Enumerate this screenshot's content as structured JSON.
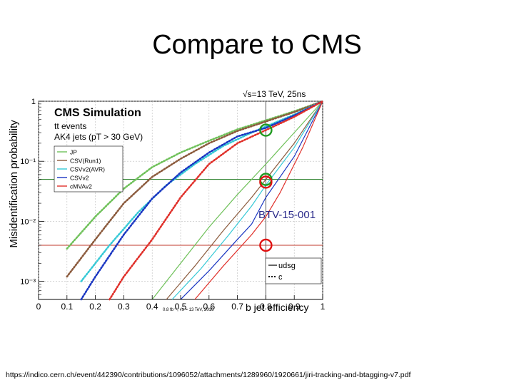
{
  "slide": {
    "title": "Compare to CMS",
    "footer_url": "https://indico.cern.ch/event/442390/contributions/1096052/attachments/1289960/1920661/jiri-tracking-and-btagging-v7.pdf"
  },
  "chart_data": {
    "type": "line",
    "title": "CMS Simulation",
    "subtitle_lines": [
      "tt events",
      "AK4 jets (pT > 30 GeV)"
    ],
    "energy_label": "√s=13 TeV, 25ns",
    "lumi_label": "0.8 fb⁻¹, √s = 13 TeV, 2016",
    "overlay_label": "BTV-15-001",
    "xlabel": "b jet efficiency",
    "ylabel": "Misidentification probability",
    "xlim": [
      0,
      1
    ],
    "ylim": [
      0.0005,
      1
    ],
    "yscale": "log",
    "x_ticks": [
      "0",
      "0.1",
      "0.2",
      "0.3",
      "0.4",
      "0.5",
      "0.6",
      "0.7",
      "0.8",
      "0.9",
      "1"
    ],
    "y_ticks": [
      {
        "value": 1,
        "label": "1"
      },
      {
        "value": 0.1,
        "label": "10⁻¹"
      },
      {
        "value": 0.01,
        "label": "10⁻²"
      },
      {
        "value": 0.001,
        "label": "10⁻³"
      }
    ],
    "grid": true,
    "legend_algorithms": [
      {
        "name": "JP",
        "color": "#6fc15a"
      },
      {
        "name": "CSV(Run1)",
        "color": "#8b5a3c"
      },
      {
        "name": "CSVv2(AVR)",
        "color": "#36c9d6"
      },
      {
        "name": "CSVv2",
        "color": "#1a36c2"
      },
      {
        "name": "cMVAv2",
        "color": "#e0302a"
      }
    ],
    "legend_flavours": [
      "udsg",
      "c"
    ],
    "series": [
      {
        "algorithm": "JP",
        "flavour": "udsg",
        "color": "#6fc15a",
        "points": [
          [
            0.4,
            0.0005
          ],
          [
            0.5,
            0.002
          ],
          [
            0.6,
            0.008
          ],
          [
            0.7,
            0.028
          ],
          [
            0.8,
            0.09
          ],
          [
            0.9,
            0.3
          ],
          [
            1.0,
            1.0
          ]
        ]
      },
      {
        "algorithm": "CSV(Run1)",
        "flavour": "udsg",
        "color": "#8b5a3c",
        "points": [
          [
            0.45,
            0.0005
          ],
          [
            0.55,
            0.0018
          ],
          [
            0.65,
            0.007
          ],
          [
            0.75,
            0.025
          ],
          [
            0.8,
            0.05
          ],
          [
            0.9,
            0.2
          ],
          [
            1.0,
            1.0
          ]
        ]
      },
      {
        "algorithm": "CSVv2(AVR)",
        "flavour": "udsg",
        "color": "#36c9d6",
        "points": [
          [
            0.47,
            0.0005
          ],
          [
            0.57,
            0.0016
          ],
          [
            0.67,
            0.006
          ],
          [
            0.75,
            0.018
          ],
          [
            0.8,
            0.04
          ],
          [
            0.9,
            0.17
          ],
          [
            1.0,
            1.0
          ]
        ]
      },
      {
        "algorithm": "CSVv2",
        "flavour": "udsg",
        "color": "#1a36c2",
        "points": [
          [
            0.5,
            0.0005
          ],
          [
            0.6,
            0.0015
          ],
          [
            0.7,
            0.005
          ],
          [
            0.75,
            0.009
          ],
          [
            0.8,
            0.025
          ],
          [
            0.9,
            0.12
          ],
          [
            1.0,
            1.0
          ]
        ]
      },
      {
        "algorithm": "cMVAv2",
        "flavour": "udsg",
        "color": "#e0302a",
        "points": [
          [
            0.55,
            0.0005
          ],
          [
            0.65,
            0.0018
          ],
          [
            0.75,
            0.006
          ],
          [
            0.8,
            0.012
          ],
          [
            0.85,
            0.03
          ],
          [
            0.93,
            0.17
          ],
          [
            1.0,
            1.0
          ]
        ]
      },
      {
        "algorithm": "JP",
        "flavour": "c",
        "color": "#6fc15a",
        "points": [
          [
            0.1,
            0.0035
          ],
          [
            0.2,
            0.012
          ],
          [
            0.3,
            0.035
          ],
          [
            0.4,
            0.08
          ],
          [
            0.5,
            0.14
          ],
          [
            0.6,
            0.22
          ],
          [
            0.7,
            0.34
          ],
          [
            0.8,
            0.48
          ],
          [
            0.9,
            0.68
          ],
          [
            1.0,
            1.0
          ]
        ]
      },
      {
        "algorithm": "CSV(Run1)",
        "flavour": "c",
        "color": "#8b5a3c",
        "points": [
          [
            0.1,
            0.0012
          ],
          [
            0.2,
            0.005
          ],
          [
            0.3,
            0.02
          ],
          [
            0.4,
            0.055
          ],
          [
            0.5,
            0.11
          ],
          [
            0.6,
            0.2
          ],
          [
            0.7,
            0.32
          ],
          [
            0.8,
            0.46
          ],
          [
            0.9,
            0.66
          ],
          [
            1.0,
            1.0
          ]
        ]
      },
      {
        "algorithm": "CSVv2(AVR)",
        "flavour": "c",
        "color": "#36c9d6",
        "points": [
          [
            0.15,
            0.001
          ],
          [
            0.25,
            0.004
          ],
          [
            0.35,
            0.014
          ],
          [
            0.45,
            0.04
          ],
          [
            0.55,
            0.09
          ],
          [
            0.65,
            0.18
          ],
          [
            0.75,
            0.3
          ],
          [
            0.8,
            0.38
          ],
          [
            0.9,
            0.6
          ],
          [
            1.0,
            1.0
          ]
        ]
      },
      {
        "algorithm": "CSVv2",
        "flavour": "c",
        "color": "#1a36c2",
        "points": [
          [
            0.15,
            0.0005
          ],
          [
            0.2,
            0.0012
          ],
          [
            0.3,
            0.006
          ],
          [
            0.4,
            0.024
          ],
          [
            0.5,
            0.065
          ],
          [
            0.6,
            0.14
          ],
          [
            0.7,
            0.26
          ],
          [
            0.8,
            0.36
          ],
          [
            0.9,
            0.58
          ],
          [
            1.0,
            1.0
          ]
        ]
      },
      {
        "algorithm": "cMVAv2",
        "flavour": "c",
        "color": "#e0302a",
        "points": [
          [
            0.25,
            0.0005
          ],
          [
            0.3,
            0.0012
          ],
          [
            0.4,
            0.005
          ],
          [
            0.5,
            0.025
          ],
          [
            0.6,
            0.09
          ],
          [
            0.7,
            0.2
          ],
          [
            0.8,
            0.33
          ],
          [
            0.9,
            0.55
          ],
          [
            1.0,
            1.0
          ]
        ]
      }
    ],
    "reference_lines": [
      {
        "orientation": "vertical",
        "value": 0.8,
        "color": "#555555"
      },
      {
        "orientation": "horizontal",
        "value": 0.05,
        "color": "#1f7a1f"
      },
      {
        "orientation": "horizontal",
        "value": 0.004,
        "color": "#c0392b"
      }
    ],
    "markers": [
      {
        "x": 0.8,
        "y": 0.33,
        "color": "#1f9a1f"
      },
      {
        "x": 0.8,
        "y": 0.05,
        "color": "#1f9a1f"
      },
      {
        "x": 0.8,
        "y": 0.045,
        "color": "#e01010"
      },
      {
        "x": 0.8,
        "y": 0.004,
        "color": "#e01010"
      }
    ]
  }
}
